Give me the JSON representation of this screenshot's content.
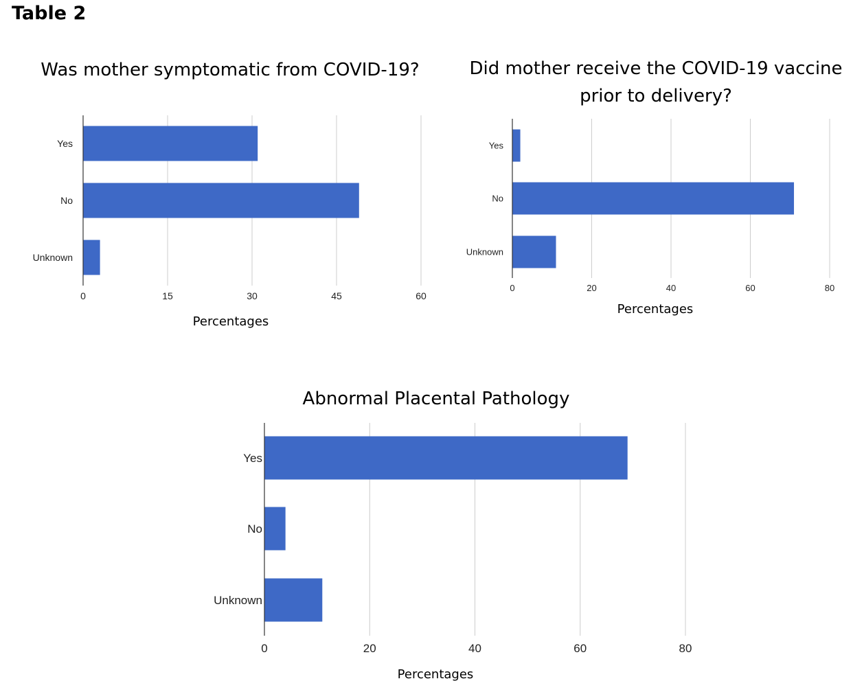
{
  "page_title": "Table 2",
  "chart_data": [
    {
      "type": "bar",
      "orientation": "horizontal",
      "title": "Was mother symptomatic from COVID-19?",
      "categories": [
        "Yes",
        "No",
        "Unknown"
      ],
      "values": [
        31,
        49,
        3
      ],
      "xlabel": "Percentages",
      "ylabel": "",
      "xlim": [
        0,
        60
      ],
      "ticks": [
        "0",
        "15",
        "30",
        "45",
        "60"
      ],
      "grid": true,
      "color": "#3e69c6"
    },
    {
      "type": "bar",
      "orientation": "horizontal",
      "title": "Did mother receive the COVID-19 vaccine prior to delivery?",
      "categories": [
        "Yes",
        "No",
        "Unknown"
      ],
      "values": [
        2,
        71,
        11
      ],
      "xlabel": "Percentages",
      "ylabel": "",
      "xlim": [
        0,
        80
      ],
      "ticks": [
        "0",
        "20",
        "40",
        "60",
        "80"
      ],
      "grid": true,
      "color": "#3e69c6"
    },
    {
      "type": "bar",
      "orientation": "horizontal",
      "title": "Abnormal Placental Pathology",
      "categories": [
        "Yes",
        "No",
        "Unknown"
      ],
      "values": [
        69,
        4,
        11
      ],
      "xlabel": "Percentages",
      "ylabel": "",
      "xlim": [
        0,
        80
      ],
      "ticks": [
        "0",
        "20",
        "40",
        "60",
        "80"
      ],
      "grid": true,
      "color": "#3e69c6"
    }
  ]
}
